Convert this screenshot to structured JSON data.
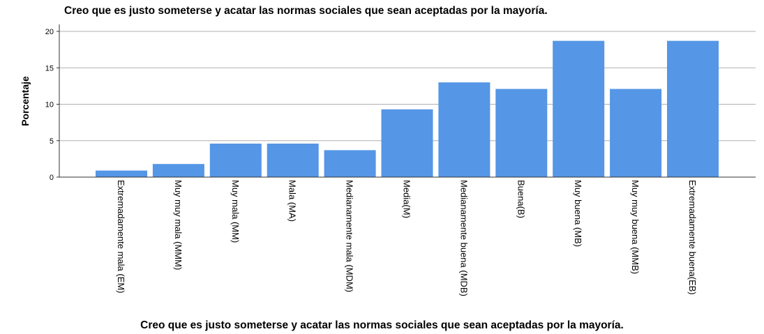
{
  "chart_data": {
    "type": "bar",
    "title": "Creo que es justo someterse y acatar las normas sociales que sean aceptadas por la mayoría.",
    "xlabel": "Creo que es justo someterse y acatar las normas sociales que sean aceptadas por la mayoría.",
    "ylabel": "Porcentaje",
    "ylim": [
      0,
      20
    ],
    "yticks": [
      "0",
      "5",
      "10",
      "15",
      "20"
    ],
    "grid": true,
    "categories": [
      "Extremadamente mala (EM)",
      "Muy muy mala (MMM)",
      "Muy mala (MM)",
      "Mala (MA)",
      "Medianamente mala (MDM)",
      "Media(M)",
      "Medianamente buena (MDB)",
      "Buena(B)",
      "Muy buena (MB)",
      "Muy muy buena (MMB)",
      "Extremadamente buena(EB)"
    ],
    "values": [
      0.9,
      1.8,
      4.6,
      4.6,
      3.7,
      9.3,
      13.0,
      12.1,
      18.7,
      12.1,
      18.7
    ],
    "bar_color": "#5596e6"
  }
}
